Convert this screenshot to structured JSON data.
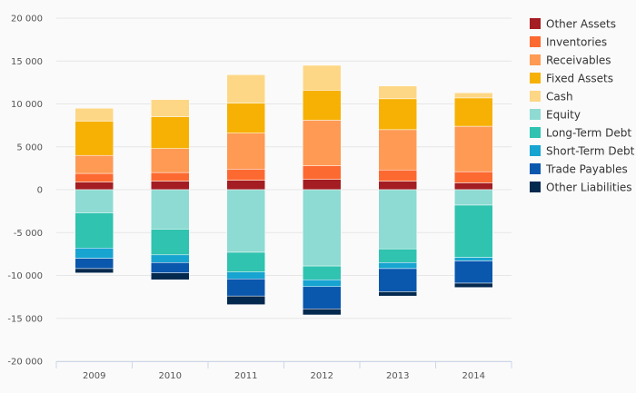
{
  "chart_data": {
    "type": "bar",
    "stacked": true,
    "categories": [
      "2009",
      "2010",
      "2011",
      "2012",
      "2013",
      "2014"
    ],
    "ylim": [
      -20000,
      20000
    ],
    "yticks": [
      "20 000",
      "15 000",
      "10 000",
      "5 000",
      "0",
      "-5 000",
      "-10 000",
      "-15 000",
      "-20 000"
    ],
    "ytick_values": [
      20000,
      15000,
      10000,
      5000,
      0,
      -5000,
      -10000,
      -15000,
      -20000
    ],
    "grid": true,
    "legend_position": "right",
    "series": [
      {
        "name": "Other Assets",
        "color": "#a31d22",
        "values": [
          900,
          1000,
          1100,
          1200,
          1000,
          800
        ]
      },
      {
        "name": "Inventories",
        "color": "#fd6a31",
        "values": [
          1000,
          1000,
          1300,
          1600,
          1300,
          1300
        ]
      },
      {
        "name": "Receivables",
        "color": "#fe9a54",
        "values": [
          2100,
          2800,
          4200,
          5300,
          4700,
          5300
        ]
      },
      {
        "name": "Fixed Assets",
        "color": "#f6b104",
        "values": [
          4000,
          3700,
          3500,
          3500,
          3600,
          3300
        ]
      },
      {
        "name": "Cash",
        "color": "#fdd785",
        "values": [
          1500,
          2000,
          3300,
          2900,
          1500,
          600
        ]
      },
      {
        "name": "Equity",
        "color": "#8ddbd2",
        "values": [
          -2700,
          -4600,
          -7300,
          -8900,
          -6900,
          -1800
        ]
      },
      {
        "name": "Long-Term Debt",
        "color": "#2fc3b0",
        "values": [
          -4100,
          -3000,
          -2300,
          -1600,
          -1600,
          -6100
        ]
      },
      {
        "name": "Short-Term Debt",
        "color": "#17a4d1",
        "values": [
          -1200,
          -900,
          -800,
          -800,
          -700,
          -400
        ]
      },
      {
        "name": "Trade Payables",
        "color": "#0a57ae",
        "values": [
          -1200,
          -1200,
          -2000,
          -2600,
          -2700,
          -2600
        ]
      },
      {
        "name": "Other Liabilities",
        "color": "#04294f",
        "values": [
          -500,
          -800,
          -1000,
          -700,
          -500,
          -500
        ]
      }
    ]
  }
}
